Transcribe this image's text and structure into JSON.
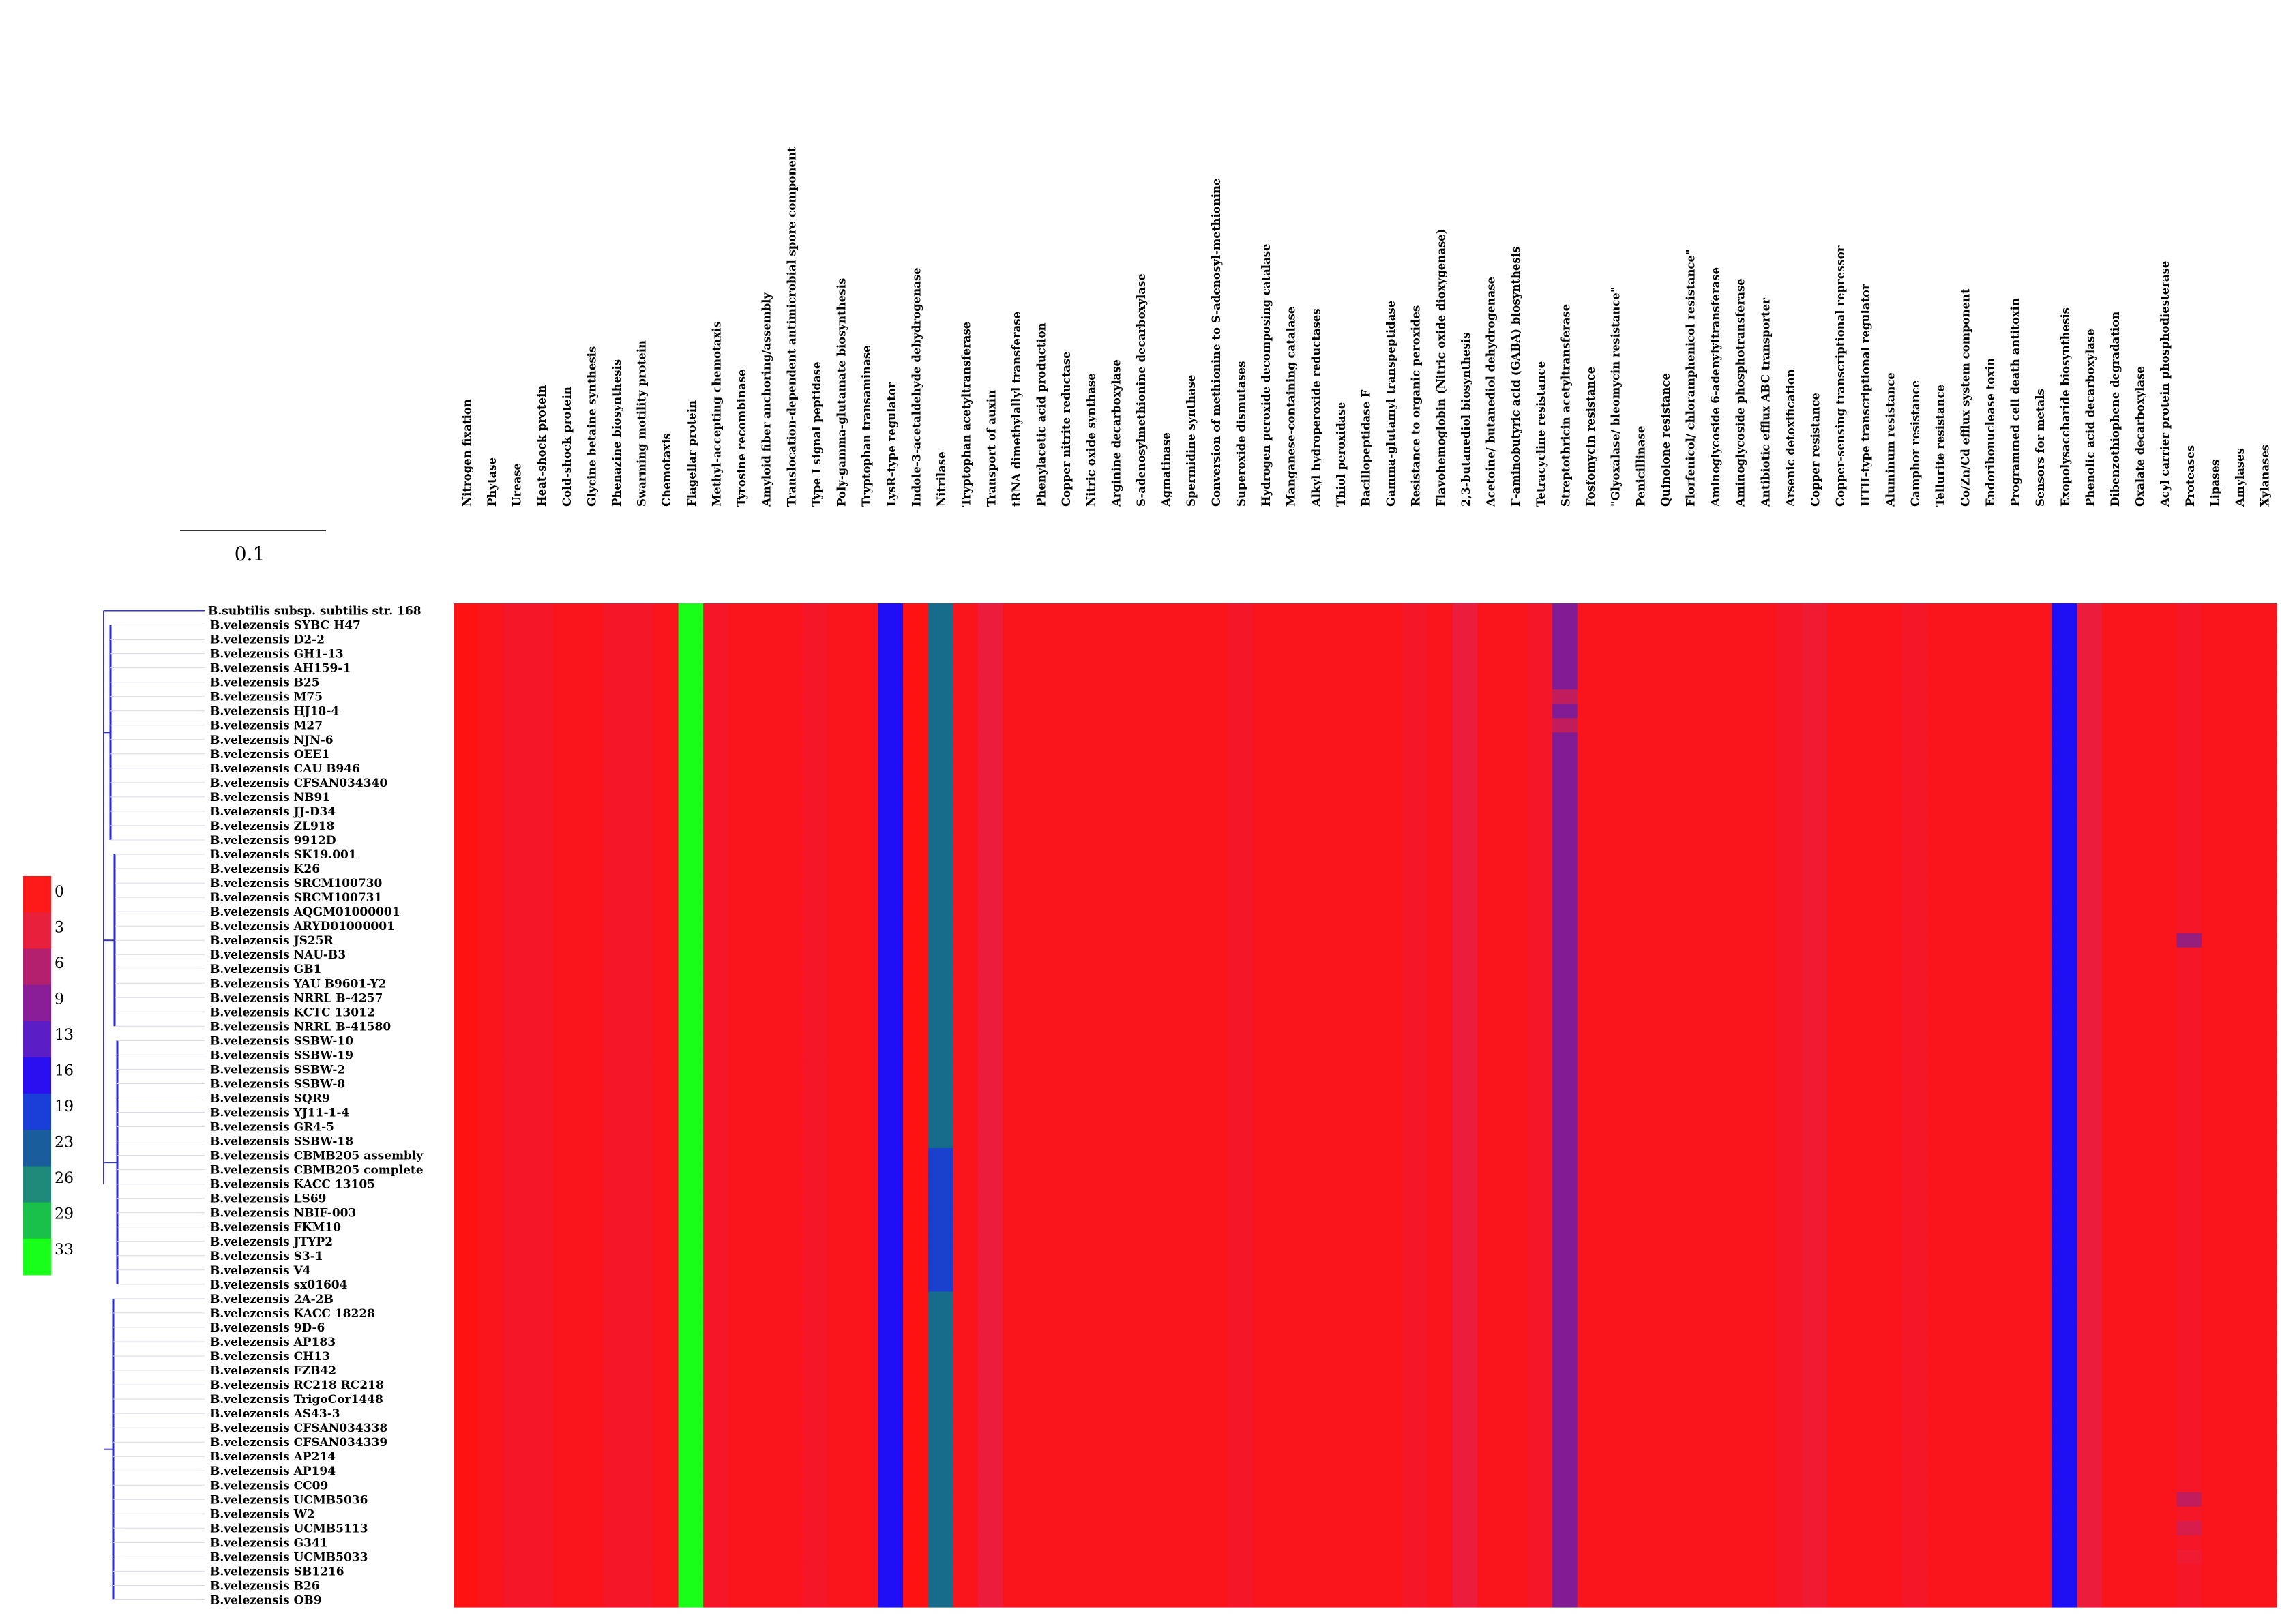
{
  "chart_data": {
    "type": "heatmap",
    "scale_bar_label": "0.1",
    "colorbar": {
      "ticks": [
        "0",
        "3",
        "6",
        "9",
        "13",
        "16",
        "19",
        "23",
        "26",
        "29",
        "33"
      ],
      "colors": [
        "#ff1a1a",
        "#e8203c",
        "#b5206e",
        "#8a1d98",
        "#5b1dc6",
        "#2a10f0",
        "#1a3fd8",
        "#1a5d9c",
        "#1f8a7a",
        "#19c04a",
        "#19ff19"
      ]
    },
    "columns": [
      "Nitrogen fixation",
      "Phytase",
      "Urease",
      "Heat-shock protein",
      "Cold-shock protein",
      "Glycine betaine synthesis",
      "Phenazine biosynthesis",
      "Swarming motility protein",
      "Chemotaxis",
      "Flagellar protein",
      "Methyl-accepting chemotaxis",
      "Tyrosine recombinase",
      "Amyloid fiber anchoring/assembly",
      "Translocation-dependent antimicrobial spore component",
      "Type I signal peptidase",
      "Poly-gamma-glutamate biosynthesis",
      "Tryptophan transaminase",
      "LysR-type regulator",
      "Indole-3-acetaldehyde dehydrogenase",
      "Nitrilase",
      "Tryptophan acetyltransferase",
      "Transport of auxin",
      "tRNA dimethylallyl transferase",
      "Phenylacetic acid production",
      "Copper nitrite reductase",
      "Nitric oxide synthase",
      "Arginine decarboxylase",
      "S-adenosylmethionine decarboxylase",
      "Agmatinase",
      "Spermidine synthase",
      "Conversion of methionine to S-adenosyl-methionine",
      "Superoxide dismutases",
      "Hydrogen peroxide decomposing catalase",
      "Manganese-containing catalase",
      "Alkyl hydroperoxide reductases",
      "Thiol peroxidase",
      "Bacillopeptidase F",
      "Gamma-glutamyl transpeptidase",
      "Resistance to organic peroxides",
      "Flavohemoglobin (Nitric oxide dioxygenase)",
      "2,3-butanediol biosynthesis",
      "Acetoine/ butanediol dehydrogenase",
      "Γ-aminobutyric acid (GABA) biosynthesis",
      "Tetracycline resistance",
      "Streptothricin acetyltransferase",
      "Fosfomycin resistance",
      "\"Glyoxalase/ bleomycin resistance\"",
      "Penicillinase",
      "Quinolone resistance",
      "Florfenicol/ chloramphenicol resistance\"",
      "Aminoglycoside 6-adenylyltransferase",
      "Aminoglycoside phosphotransferase",
      "Antibiotic efflux ABC transporter",
      "Arsenic detoxification",
      "Copper resistance",
      "Copper-sensing transcriptional repressor",
      "HTH-type transcriptional regulator",
      "Aluminum resistance",
      "Camphor resistance",
      "Tellurite resistance",
      "Co/Zn/Cd efflux system component",
      "Endoribonuclease toxin",
      "Programmed cell death antitoxin",
      "Sensors for metals",
      "Exopolysaccharide biosynthesis",
      "Phenolic acid decarboxylase",
      "Dibenzothiophene degradation",
      "Oxalate decarboxylase",
      "Acyl carrier protein phosphodiesterase",
      "Proteases",
      "Lipases",
      "Amylases",
      "Xylanases"
    ],
    "rows": [
      "B.subtilis subsp. subtilis str. 168",
      "B.velezensis SYBC H47",
      "B.velezensis D2-2",
      "B.velezensis GH1-13",
      "B.velezensis AH159-1",
      "B.velezensis B25",
      "B.velezensis M75",
      "B.velezensis HJ18-4",
      "B.velezensis M27",
      "B.velezensis NJN-6",
      "B.velezensis OEE1",
      "B.velezensis CAU B946",
      "B.velezensis CFSAN034340",
      "B.velezensis NB91",
      "B.velezensis JJ-D34",
      "B.velezensis ZL918",
      "B.velezensis 9912D",
      "B.velezensis SK19.001",
      "B.velezensis K26",
      "B.velezensis SRCM100730",
      "B.velezensis SRCM100731",
      "B.velezensis AQGM01000001",
      "B.velezensis ARYD01000001",
      "B.velezensis JS25R",
      "B.velezensis NAU-B3",
      "B.velezensis GB1",
      "B.velezensis YAU B9601-Y2",
      "B.velezensis NRRL B-4257",
      "B.velezensis KCTC 13012",
      "B.velezensis NRRL B-41580",
      "B.velezensis SSBW-10",
      "B.velezensis SSBW-19",
      "B.velezensis SSBW-2",
      "B.velezensis SSBW-8",
      "B.velezensis SQR9",
      "B.velezensis YJ11-1-4",
      "B.velezensis GR4-5",
      "B.velezensis SSBW-18",
      "B.velezensis CBMB205 assembly",
      "B.velezensis CBMB205 complete",
      "B.velezensis KACC 13105",
      "B.velezensis LS69",
      "B.velezensis NBIF-003",
      "B.velezensis FKM10",
      "B.velezensis JTYP2",
      "B.velezensis S3-1",
      "B.velezensis V4",
      "B.velezensis sx01604",
      "B.velezensis 2A-2B",
      "B.velezensis KACC 18228",
      "B.velezensis 9D-6",
      "B.velezensis AP183",
      "B.velezensis CH13",
      "B.velezensis FZB42",
      "B.velezensis RC218 RC218",
      "B.velezensis TrigoCor1448",
      "B.velezensis AS43-3",
      "B.velezensis CFSAN034338",
      "B.velezensis CFSAN034339",
      "B.velezensis AP214",
      "B.velezensis AP194",
      "B.velezensis CC09",
      "B.velezensis UCMB5036",
      "B.velezensis W2",
      "B.velezensis UCMB5113",
      "B.velezensis G341",
      "B.velezensis UCMB5033",
      "B.velezensis SB1216",
      "B.velezensis B26",
      "B.velezensis OB9"
    ],
    "base_values": [
      0,
      1,
      2,
      2,
      1,
      1,
      2,
      2,
      1,
      33,
      2,
      1,
      1,
      1,
      2,
      1,
      1,
      16,
      0,
      24,
      1,
      4,
      1,
      1,
      1,
      1,
      1,
      1,
      1,
      1,
      1,
      2,
      1,
      1,
      1,
      1,
      1,
      1,
      2,
      1,
      4,
      1,
      1,
      2,
      9,
      1,
      1,
      1,
      1,
      1,
      1,
      1,
      1,
      2,
      3,
      1,
      1,
      1,
      2,
      1,
      1,
      1,
      1,
      1,
      16,
      4,
      1,
      1,
      1,
      2,
      1,
      1,
      1
    ],
    "overrides": [
      {
        "col": "Nitrilase",
        "rows_from": "B.velezensis CBMB205 assembly",
        "rows_to": "B.velezensis sx01604",
        "value": 19
      },
      {
        "col": "Proteases",
        "row": "B.velezensis JS25R",
        "value": 8
      },
      {
        "col": "Proteases",
        "row": "B.velezensis UCMB5036",
        "value": 6
      },
      {
        "col": "Proteases",
        "row": "B.velezensis UCMB5113",
        "value": 5
      },
      {
        "col": "Proteases",
        "row": "B.velezensis UCMB5033",
        "value": 3
      },
      {
        "col": "Streptothricin acetyltransferase",
        "row": "B.velezensis M75",
        "value": 6
      },
      {
        "col": "Streptothricin acetyltransferase",
        "row": "B.velezensis M27",
        "value": 6
      }
    ]
  }
}
